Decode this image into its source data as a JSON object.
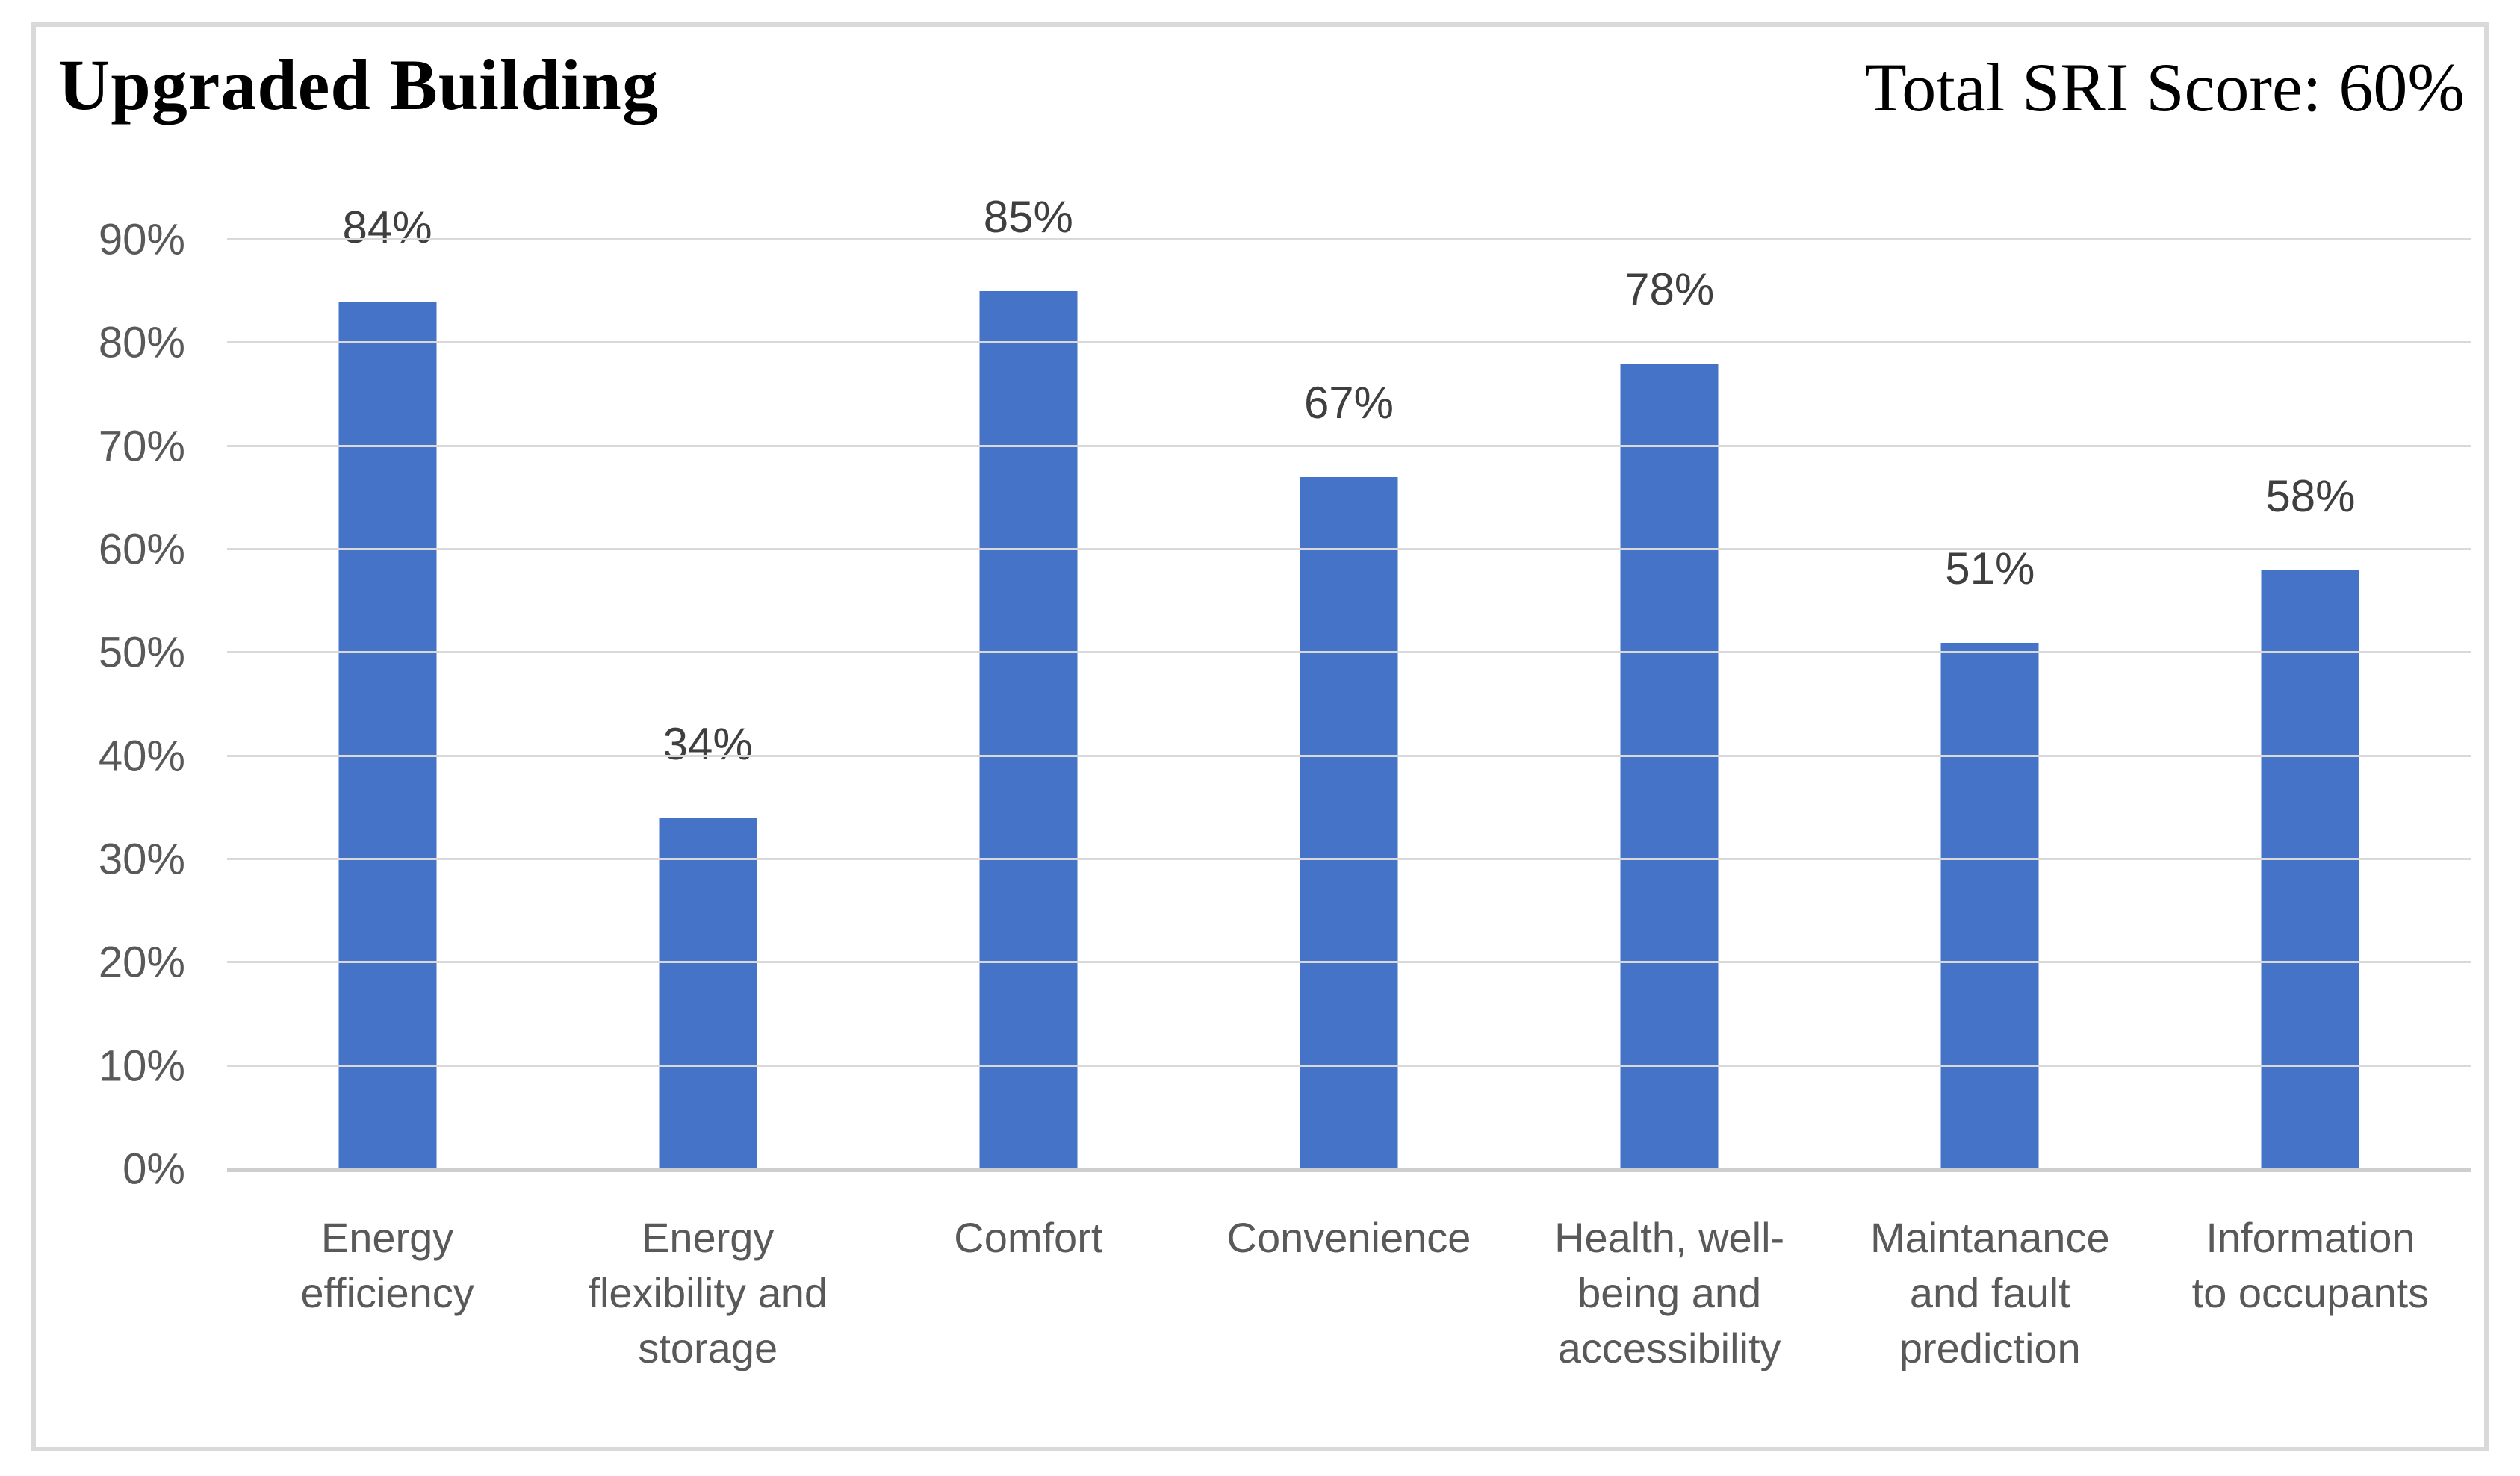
{
  "chart": {
    "title": "Upgraded Building",
    "score_label": "Total SRI Score: 60%"
  },
  "chart_data": {
    "type": "bar",
    "title": "Upgraded Building",
    "annotation": "Total SRI Score: 60%",
    "categories": [
      "Energy efficiency",
      "Energy flexibility and storage",
      "Comfort",
      "Convenience",
      "Health, well-being and accessibility",
      "Maintanance and fault prediction",
      "Information to occupants"
    ],
    "category_lines": [
      [
        "Energy",
        "efficiency"
      ],
      [
        "Energy",
        "flexibility and",
        "storage"
      ],
      [
        "Comfort"
      ],
      [
        "Convenience"
      ],
      [
        "Health, well-",
        "being and",
        "accessibility"
      ],
      [
        "Maintanance",
        "and fault",
        "prediction"
      ],
      [
        "Information",
        "to occupants"
      ]
    ],
    "values": [
      84,
      34,
      85,
      67,
      78,
      51,
      58
    ],
    "value_labels": [
      "84%",
      "34%",
      "85%",
      "67%",
      "78%",
      "51%",
      "58%"
    ],
    "y_ticks_top_to_bottom": [
      "90%",
      "80%",
      "70%",
      "60%",
      "50%",
      "40%",
      "30%",
      "20%",
      "10%",
      "0%"
    ],
    "ylim": [
      0,
      90
    ],
    "grid": true,
    "legend": "none",
    "colors": {
      "bar": "#4473c7",
      "gridline": "#d9d9d9",
      "axis_line": "#cfcdcd",
      "value_label_text": "#3f3f3f",
      "axis_text": "#595959",
      "title_text": "#000000",
      "frame_border": "#d9d9d9",
      "background": "#ffffff"
    }
  }
}
